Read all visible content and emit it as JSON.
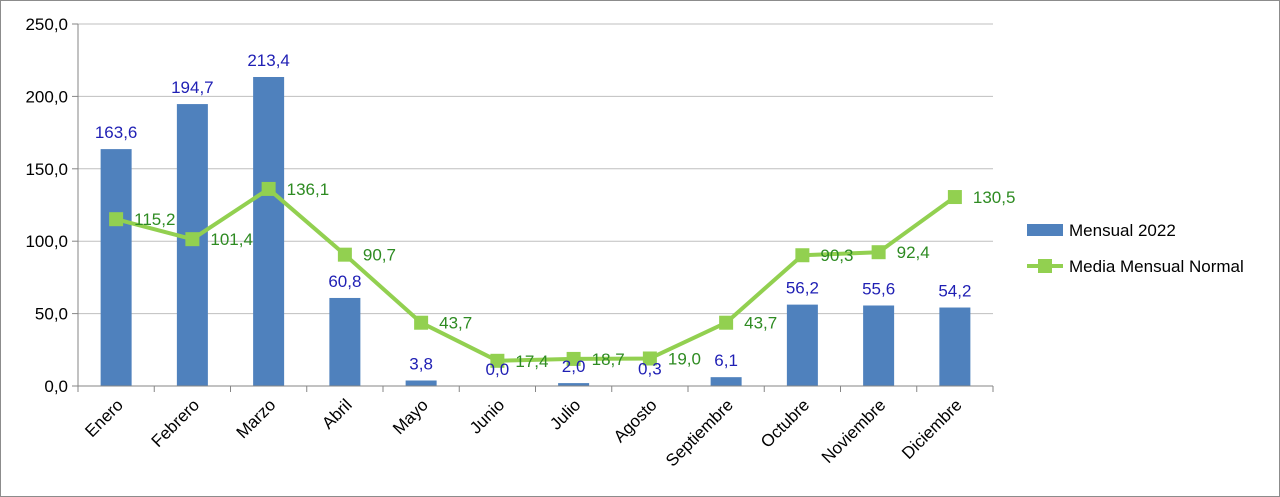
{
  "chart_data": {
    "type": "bar",
    "categories": [
      "Enero",
      "Febrero",
      "Marzo",
      "Abril",
      "Mayo",
      "Junio",
      "Julio",
      "Agosto",
      "Septiembre",
      "Octubre",
      "Noviembre",
      "Diciembre"
    ],
    "ylim": [
      0,
      250
    ],
    "yticks": [
      0,
      50,
      100,
      150,
      200,
      250
    ],
    "ytick_labels": [
      "0,0",
      "50,0",
      "100,0",
      "150,0",
      "200,0",
      "250,0"
    ],
    "grid": true,
    "legend_position": "right",
    "series": [
      {
        "name": "Mensual 2022",
        "kind": "bar",
        "color": "#4F81BD",
        "label_color": "#1F1FB4",
        "values": [
          163.6,
          194.7,
          213.4,
          60.8,
          3.8,
          0.0,
          2.0,
          0.3,
          6.1,
          56.2,
          55.6,
          54.2
        ],
        "labels": [
          "163,6",
          "194,7",
          "213,4",
          "60,8",
          "3,8",
          "0,0",
          "2,0",
          "0,3",
          "6,1",
          "56,2",
          "55,6",
          "54,2"
        ]
      },
      {
        "name": "Media Mensual Normal",
        "kind": "line",
        "color": "#92D050",
        "label_color": "#2E8B22",
        "values": [
          115.2,
          101.4,
          136.1,
          90.7,
          43.7,
          17.4,
          18.7,
          19.0,
          43.7,
          90.3,
          92.4,
          130.5
        ],
        "labels": [
          "115,2",
          "101,4",
          "136,1",
          "90,7",
          "43,7",
          "17,4",
          "18,7",
          "19,0",
          "43,7",
          "90,3",
          "92,4",
          "130,5"
        ]
      }
    ]
  }
}
